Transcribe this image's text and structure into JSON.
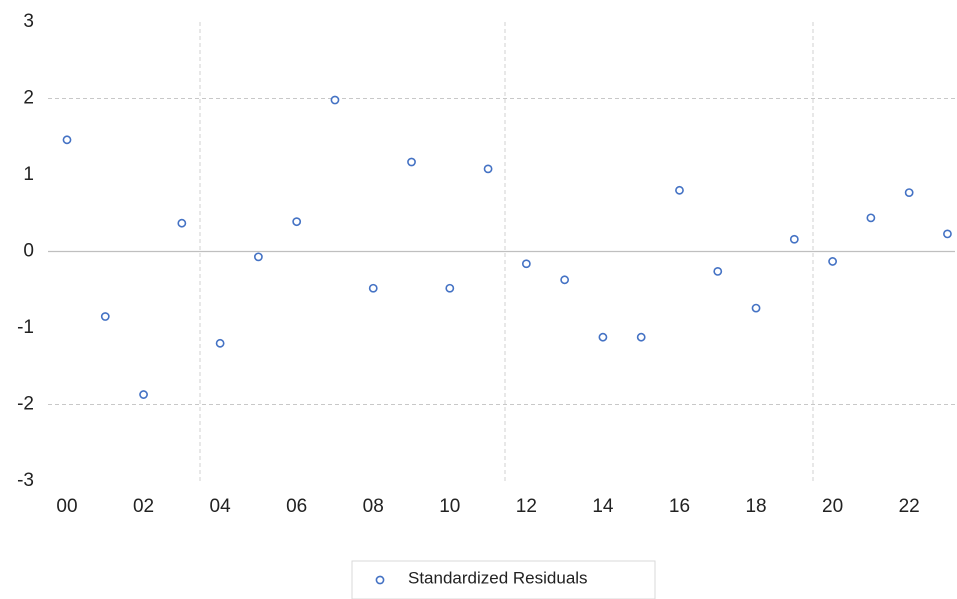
{
  "chart_data": {
    "type": "scatter",
    "categories": [
      "00",
      null,
      "02",
      null,
      "04",
      null,
      "06",
      null,
      "08",
      null,
      "10",
      null,
      "12",
      null,
      "14",
      null,
      "16",
      null,
      "18",
      null,
      "20",
      null,
      "22",
      null
    ],
    "series": [
      {
        "name": "Standardized Residuals",
        "color": "#4472c4",
        "values": [
          1.46,
          -0.85,
          -1.87,
          0.37,
          -1.2,
          -0.07,
          0.39,
          1.98,
          -0.48,
          1.17,
          -0.48,
          1.08,
          -0.16,
          -0.37,
          -1.12,
          -1.12,
          0.8,
          -0.26,
          -0.74,
          0.16,
          -0.13,
          0.44,
          0.77,
          0.23
        ]
      }
    ],
    "ylim": [
      -3,
      3
    ],
    "yticks": [
      -3,
      -2,
      -1,
      0,
      1,
      2,
      3
    ],
    "grid": true,
    "grid_step": 2,
    "legend": "bottom"
  }
}
